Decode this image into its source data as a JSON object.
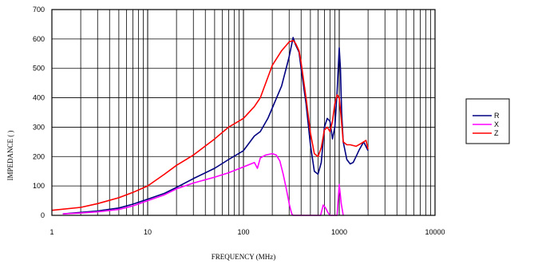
{
  "chart_data": {
    "type": "line",
    "xlabel": "FREQUENCY (MHz)",
    "ylabel": "IMPEDANCE (   )",
    "xscale": "log",
    "xlim": [
      1,
      10000
    ],
    "ylim": [
      0,
      700
    ],
    "x_ticks": [
      1,
      10,
      100,
      1000,
      10000
    ],
    "x_tick_labels": [
      "1",
      "10",
      "100",
      "1000",
      "10000"
    ],
    "y_ticks": [
      0,
      100,
      200,
      300,
      400,
      500,
      600,
      700
    ],
    "y_tick_labels": [
      "0",
      "100",
      "200",
      "300",
      "400",
      "500",
      "600",
      "700"
    ],
    "grid": true,
    "legend_position": "right",
    "series": [
      {
        "name": "R",
        "color": "#000080",
        "x": [
          1.3,
          2,
          3,
          5,
          7,
          10,
          15,
          20,
          30,
          50,
          70,
          100,
          130,
          150,
          180,
          200,
          250,
          300,
          330,
          350,
          380,
          400,
          450,
          500,
          550,
          600,
          650,
          700,
          750,
          800,
          850,
          900,
          950,
          1000,
          1030,
          1060,
          1100,
          1200,
          1300,
          1400,
          1500,
          1600,
          1800,
          2000
        ],
        "y": [
          5,
          10,
          15,
          25,
          38,
          55,
          75,
          95,
          125,
          160,
          190,
          220,
          270,
          285,
          330,
          365,
          440,
          540,
          605,
          580,
          555,
          500,
          380,
          240,
          150,
          140,
          180,
          300,
          330,
          320,
          260,
          300,
          420,
          570,
          500,
          350,
          250,
          190,
          175,
          180,
          200,
          220,
          250,
          220
        ]
      },
      {
        "name": "X",
        "color": "#ff00ff",
        "x": [
          1.3,
          2,
          3,
          5,
          7,
          10,
          15,
          20,
          30,
          50,
          70,
          100,
          130,
          140,
          150,
          170,
          200,
          220,
          240,
          260,
          280,
          300,
          310,
          320,
          330,
          640,
          680,
          720,
          760,
          800,
          950,
          1000,
          1050,
          1100
        ],
        "y": [
          5,
          8,
          12,
          20,
          32,
          50,
          70,
          90,
          110,
          130,
          145,
          165,
          180,
          160,
          195,
          205,
          210,
          205,
          185,
          140,
          90,
          40,
          20,
          5,
          0,
          0,
          35,
          25,
          10,
          0,
          0,
          105,
          40,
          0
        ]
      },
      {
        "name": "Z",
        "color": "#ff0000",
        "x": [
          1,
          2,
          3,
          5,
          7,
          10,
          15,
          20,
          30,
          50,
          70,
          100,
          130,
          150,
          200,
          250,
          300,
          330,
          350,
          380,
          400,
          450,
          500,
          550,
          600,
          650,
          700,
          750,
          800,
          850,
          900,
          950,
          1000,
          1050,
          1100,
          1200,
          1300,
          1500,
          1700,
          1900,
          2000
        ],
        "y": [
          17,
          27,
          40,
          60,
          78,
          100,
          140,
          170,
          205,
          260,
          300,
          330,
          370,
          400,
          510,
          560,
          590,
          595,
          585,
          560,
          520,
          400,
          280,
          210,
          200,
          230,
          290,
          300,
          285,
          320,
          380,
          410,
          400,
          330,
          250,
          240,
          240,
          235,
          245,
          255,
          225
        ]
      }
    ]
  }
}
